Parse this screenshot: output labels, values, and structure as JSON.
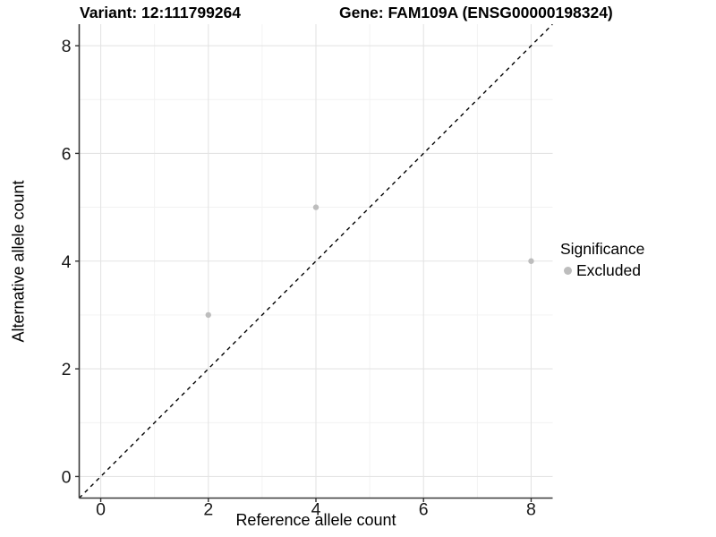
{
  "chart_data": {
    "type": "scatter",
    "title_left": "Variant: 12:111799264",
    "title_right": "Gene: FAM109A (ENSG00000198324)",
    "xlabel": "Reference allele count",
    "ylabel": "Alternative allele count",
    "xlim": [
      -0.4,
      8.4
    ],
    "ylim": [
      -0.4,
      8.4
    ],
    "x_ticks": [
      0,
      2,
      4,
      6,
      8
    ],
    "y_ticks": [
      0,
      2,
      4,
      6,
      8
    ],
    "x_minor_ticks": [
      1,
      3,
      5,
      7
    ],
    "y_minor_ticks": [
      1,
      3,
      5,
      7
    ],
    "grid": "major+minor",
    "series": [
      {
        "name": "Excluded",
        "color": "#bdbdbd",
        "points": [
          [
            2,
            3
          ],
          [
            4,
            5
          ],
          [
            8,
            4
          ]
        ]
      }
    ],
    "identity_line": {
      "slope": 1,
      "intercept": 0,
      "style": "dashed",
      "color": "#000000"
    },
    "legend": {
      "title": "Significance",
      "position": "right",
      "entries": [
        {
          "label": "Excluded",
          "color": "#bdbdbd"
        }
      ]
    }
  },
  "style": {
    "background": "#ffffff",
    "axis_line_color": "#3a3a3a",
    "tick_color": "#333333",
    "major_grid_color": "#e4e4e4",
    "minor_grid_color": "#f1f1f1",
    "tick_label_color": "#1a1a1a",
    "title_color": "#000000"
  }
}
